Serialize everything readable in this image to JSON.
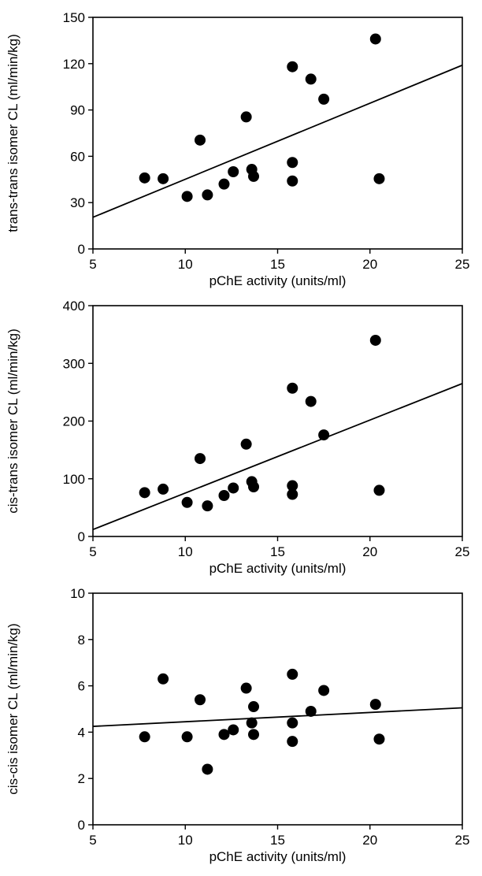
{
  "chart_data": [
    {
      "type": "scatter",
      "xlabel": "pChE activity (units/ml)",
      "ylabel": "trans-trans isomer CL (ml/min/kg)",
      "xlim": [
        5,
        25
      ],
      "ylim": [
        0,
        150
      ],
      "xticks": [
        5,
        10,
        15,
        20,
        25
      ],
      "yticks": [
        0,
        30,
        60,
        90,
        120,
        150
      ],
      "grid": false,
      "points": [
        {
          "x": 7.8,
          "y": 46
        },
        {
          "x": 8.8,
          "y": 45.5
        },
        {
          "x": 10.1,
          "y": 34
        },
        {
          "x": 10.8,
          "y": 70.5
        },
        {
          "x": 11.2,
          "y": 35
        },
        {
          "x": 12.1,
          "y": 42
        },
        {
          "x": 12.6,
          "y": 50
        },
        {
          "x": 13.3,
          "y": 85.5
        },
        {
          "x": 13.6,
          "y": 51.5
        },
        {
          "x": 13.7,
          "y": 47
        },
        {
          "x": 15.8,
          "y": 118
        },
        {
          "x": 15.8,
          "y": 56
        },
        {
          "x": 15.8,
          "y": 44
        },
        {
          "x": 16.8,
          "y": 110
        },
        {
          "x": 17.5,
          "y": 97
        },
        {
          "x": 20.3,
          "y": 136
        },
        {
          "x": 20.5,
          "y": 45.5
        }
      ],
      "fit_line": {
        "x": [
          5,
          25
        ],
        "y": [
          20.5,
          119
        ]
      }
    },
    {
      "type": "scatter",
      "xlabel": "pChE activity (units/ml)",
      "ylabel": "cis-trans isomer CL (ml/min/kg)",
      "xlim": [
        5,
        25
      ],
      "ylim": [
        0,
        400
      ],
      "xticks": [
        5,
        10,
        15,
        20,
        25
      ],
      "yticks": [
        0,
        100,
        200,
        300,
        400
      ],
      "grid": false,
      "points": [
        {
          "x": 7.8,
          "y": 76
        },
        {
          "x": 8.8,
          "y": 82
        },
        {
          "x": 10.1,
          "y": 59
        },
        {
          "x": 10.8,
          "y": 135
        },
        {
          "x": 11.2,
          "y": 53
        },
        {
          "x": 12.1,
          "y": 71
        },
        {
          "x": 12.6,
          "y": 84
        },
        {
          "x": 13.3,
          "y": 160
        },
        {
          "x": 13.6,
          "y": 95
        },
        {
          "x": 13.7,
          "y": 86
        },
        {
          "x": 15.8,
          "y": 257
        },
        {
          "x": 15.8,
          "y": 88
        },
        {
          "x": 15.8,
          "y": 73
        },
        {
          "x": 16.8,
          "y": 234
        },
        {
          "x": 17.5,
          "y": 176
        },
        {
          "x": 20.3,
          "y": 340
        },
        {
          "x": 20.5,
          "y": 80
        }
      ],
      "fit_line": {
        "x": [
          5,
          25
        ],
        "y": [
          12,
          265
        ]
      }
    },
    {
      "type": "scatter",
      "xlabel": "pChE activity (units/ml)",
      "ylabel": "cis-cis isomer CL (ml/min/kg)",
      "xlim": [
        5,
        25
      ],
      "ylim": [
        0,
        10
      ],
      "xticks": [
        5,
        10,
        15,
        20,
        25
      ],
      "yticks": [
        0,
        2,
        4,
        6,
        8,
        10
      ],
      "grid": false,
      "points": [
        {
          "x": 7.8,
          "y": 3.8
        },
        {
          "x": 8.8,
          "y": 6.3
        },
        {
          "x": 10.1,
          "y": 3.8
        },
        {
          "x": 10.8,
          "y": 5.4
        },
        {
          "x": 11.2,
          "y": 2.4
        },
        {
          "x": 12.1,
          "y": 3.9
        },
        {
          "x": 12.6,
          "y": 4.1
        },
        {
          "x": 13.3,
          "y": 5.9
        },
        {
          "x": 13.6,
          "y": 4.4
        },
        {
          "x": 13.7,
          "y": 5.1
        },
        {
          "x": 13.7,
          "y": 3.9
        },
        {
          "x": 15.8,
          "y": 6.5
        },
        {
          "x": 15.8,
          "y": 4.4
        },
        {
          "x": 15.8,
          "y": 3.6
        },
        {
          "x": 16.8,
          "y": 4.9
        },
        {
          "x": 17.5,
          "y": 5.8
        },
        {
          "x": 20.3,
          "y": 5.2
        },
        {
          "x": 20.5,
          "y": 3.7
        }
      ],
      "fit_line": {
        "x": [
          5,
          25
        ],
        "y": [
          4.25,
          5.05
        ]
      }
    }
  ]
}
